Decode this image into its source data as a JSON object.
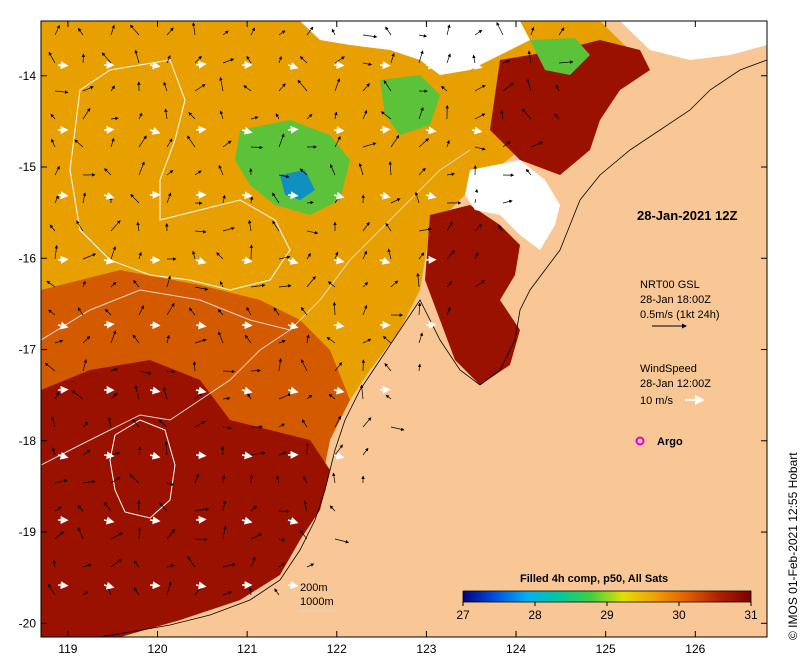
{
  "map": {
    "lon_range": [
      118.7,
      126.8
    ],
    "lat_range": [
      -20.15,
      -13.4
    ],
    "lon_ticks": [
      "119",
      "120",
      "121",
      "122",
      "123",
      "124",
      "125",
      "126"
    ],
    "lat_ticks": [
      "-14",
      "-15",
      "-16",
      "-17",
      "-18",
      "-19",
      "-20"
    ],
    "colors": {
      "land": "#f9c795",
      "ocean_hot": "#9a1100",
      "ocean_warm": "#d45a00",
      "ocean_mid": "#e8a000",
      "cloud": "#ffffff",
      "green_patch": "#5bc23a",
      "blue_patch": "#1090c0"
    }
  },
  "annotations": {
    "date_label": "28-Jan-2021 12Z",
    "currents_title": "NRT00 GSL",
    "currents_time": "28-Jan 18:00Z",
    "currents_scale": "0.5m/s (1kt 24h)",
    "wind_title": "WindSpeed",
    "wind_time": "28-Jan 12:00Z",
    "wind_scale": "10 m/s",
    "argo_label": "Argo",
    "contour_200": "200m",
    "contour_1000": "1000m",
    "credit": "© IMOS 01-Feb-2021 12:55 Hobart"
  },
  "colorbar": {
    "title": "Filled 4h comp, p50, All Sats",
    "ticks": [
      "27",
      "28",
      "29",
      "30",
      "31"
    ],
    "stops": [
      "#000080",
      "#0050e0",
      "#00b0f0",
      "#00c8a0",
      "#40d040",
      "#e0e000",
      "#f0a000",
      "#e06000",
      "#b02000",
      "#800000"
    ]
  }
}
